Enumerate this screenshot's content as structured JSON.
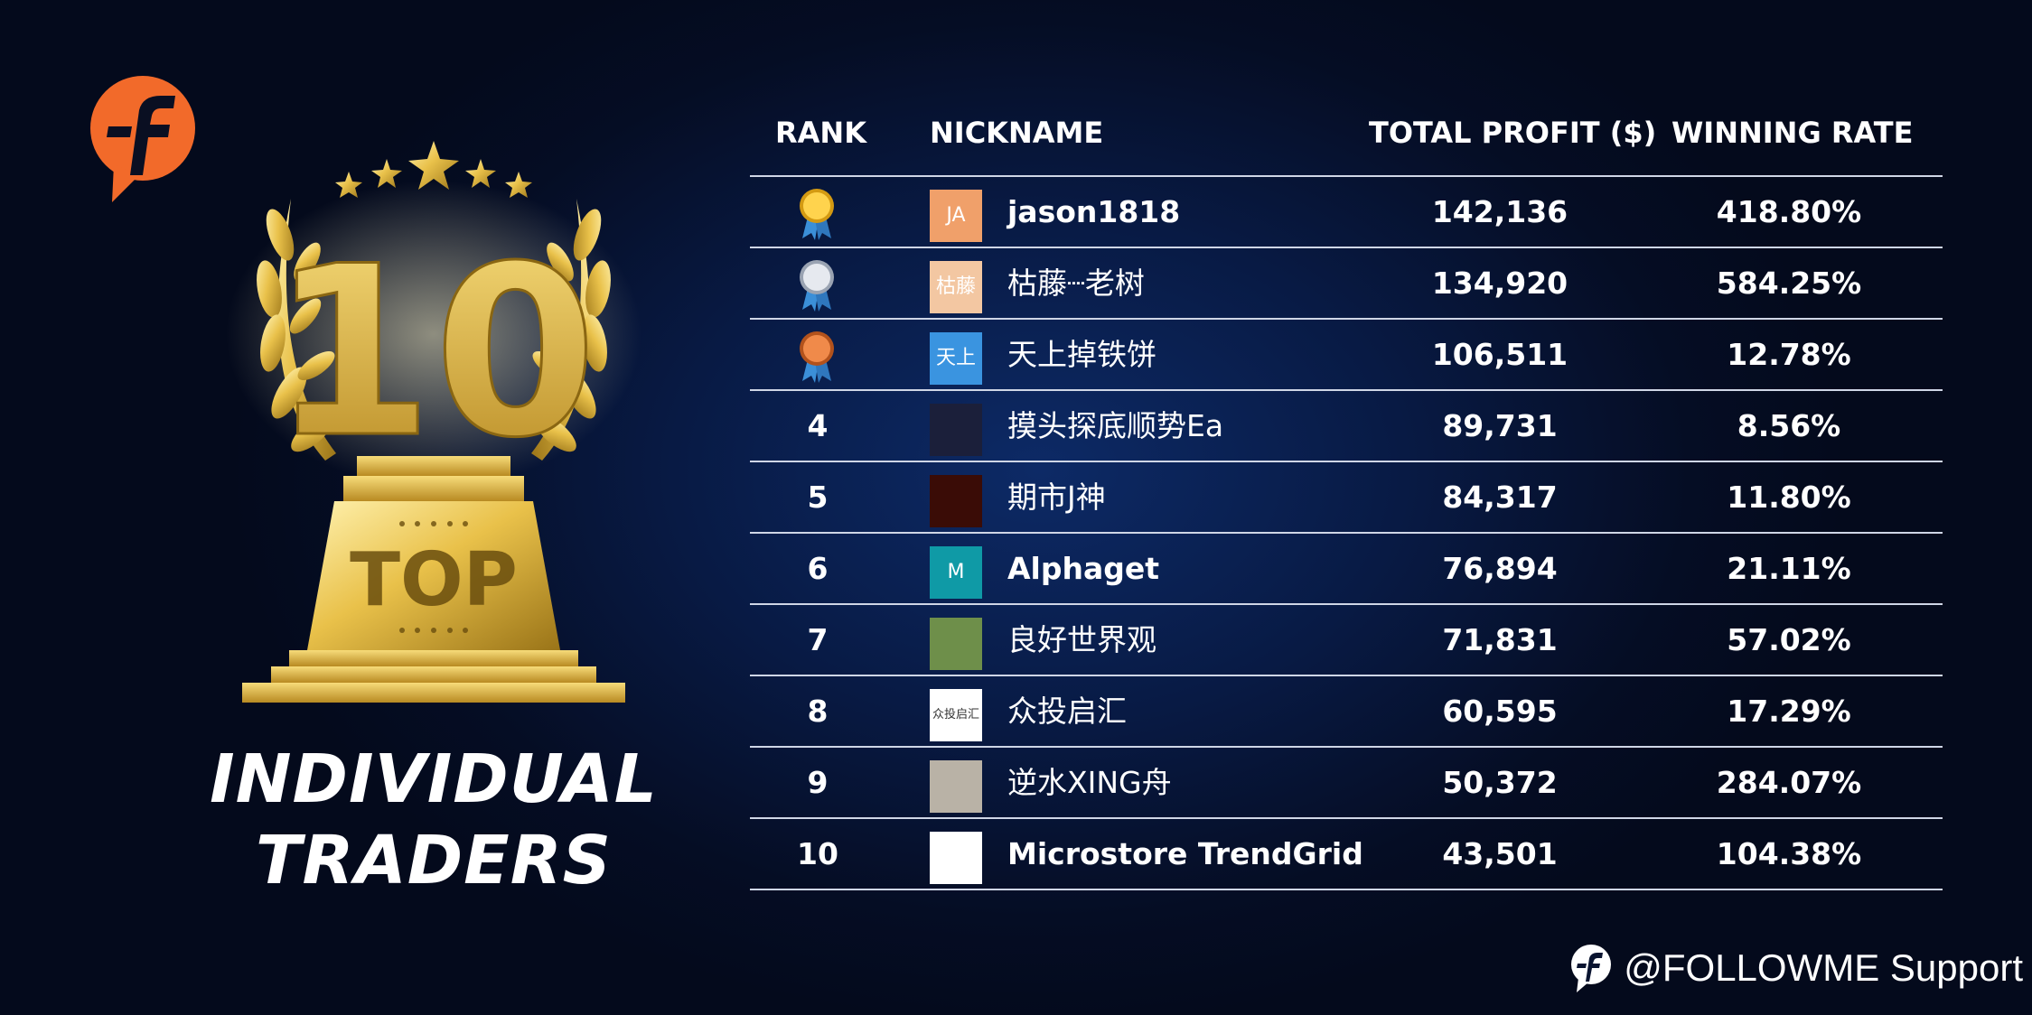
{
  "colors": {
    "accent": "#f26a2a",
    "gold": "#e9c14a",
    "background": "#061338"
  },
  "trophy": {
    "number": "10",
    "plaque": "TOP"
  },
  "title": {
    "line1": "INDIVIDUAL",
    "line2": "TRADERS"
  },
  "table": {
    "headers": {
      "rank": "RANK",
      "nickname": "NICKNAME",
      "profit": "TOTAL PROFIT ($)",
      "rate": "WINNING RATE"
    },
    "rows": [
      {
        "rank": "",
        "medal": "gold",
        "avatar": "JA",
        "avatar_color": "#f0a06a",
        "nickname": "jason1818",
        "latin": true,
        "profit": "142,136",
        "rate": "418.80%"
      },
      {
        "rank": "",
        "medal": "silver",
        "avatar": "枯藤",
        "avatar_color": "#f3c7a2",
        "nickname": "枯藤┈老树",
        "latin": false,
        "profit": "134,920",
        "rate": "584.25%"
      },
      {
        "rank": "",
        "medal": "bronze",
        "avatar": "天上",
        "avatar_color": "#3a94e0",
        "nickname": "天上掉铁饼",
        "latin": false,
        "profit": "106,511",
        "rate": "12.78%"
      },
      {
        "rank": "4",
        "medal": "",
        "avatar": "",
        "avatar_color": "#1b1f3a",
        "nickname": "摸头探底顺势Ea",
        "latin": false,
        "profit": "89,731",
        "rate": "8.56%"
      },
      {
        "rank": "5",
        "medal": "",
        "avatar": "",
        "avatar_color": "#3a0c06",
        "nickname": "期市J神",
        "latin": false,
        "profit": "84,317",
        "rate": "11.80%"
      },
      {
        "rank": "6",
        "medal": "",
        "avatar": "M",
        "avatar_color": "#0f9aa6",
        "nickname": "Alphaget",
        "latin": true,
        "profit": "76,894",
        "rate": "21.11%"
      },
      {
        "rank": "7",
        "medal": "",
        "avatar": "",
        "avatar_color": "#6e8f4a",
        "nickname": "良好世界观",
        "latin": false,
        "profit": "71,831",
        "rate": "57.02%"
      },
      {
        "rank": "8",
        "medal": "",
        "avatar": "众投启汇",
        "avatar_color": "#ffffff",
        "nickname": "众投启汇",
        "latin": false,
        "profit": "60,595",
        "rate": "17.29%"
      },
      {
        "rank": "9",
        "medal": "",
        "avatar": "",
        "avatar_color": "#b9b2a6",
        "nickname": "逆水XING舟",
        "latin": false,
        "profit": "50,372",
        "rate": "284.07%"
      },
      {
        "rank": "10",
        "medal": "",
        "avatar": "",
        "avatar_color": "#ffffff",
        "nickname": "Microstore TrendGrid",
        "latin": true,
        "profit": "43,501",
        "rate": "104.38%"
      }
    ]
  },
  "footer": {
    "handle": "@FOLLOWME Support"
  }
}
